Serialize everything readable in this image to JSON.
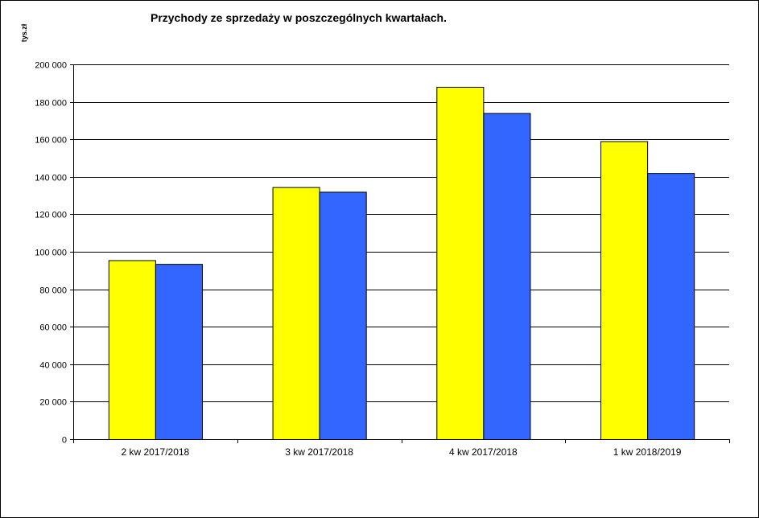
{
  "chart_data": {
    "type": "bar",
    "title": "Przychody ze sprzedaży w poszczególnych kwartałach.",
    "ylabel": "tys.zł",
    "xlabel": "",
    "categories": [
      "2 kw 2017/2018",
      "3 kw 2017/2018",
      "4 kw 2017/2018",
      "1 kw 2018/2019"
    ],
    "series": [
      {
        "color": "#ffff00",
        "values": [
          95500,
          134500,
          188000,
          159000
        ]
      },
      {
        "color": "#3366ff",
        "values": [
          93500,
          132000,
          174000,
          142000
        ]
      }
    ],
    "ylim": [
      0,
      200000
    ],
    "yticks": [
      0,
      20000,
      40000,
      60000,
      80000,
      100000,
      120000,
      140000,
      160000,
      180000,
      200000
    ],
    "ytick_labels": [
      "0",
      "20 000",
      "40 000",
      "60 000",
      "80 000",
      "100 000",
      "120 000",
      "140 000",
      "160 000",
      "180 000",
      "200 000"
    ],
    "grid": true,
    "legend": "none"
  }
}
